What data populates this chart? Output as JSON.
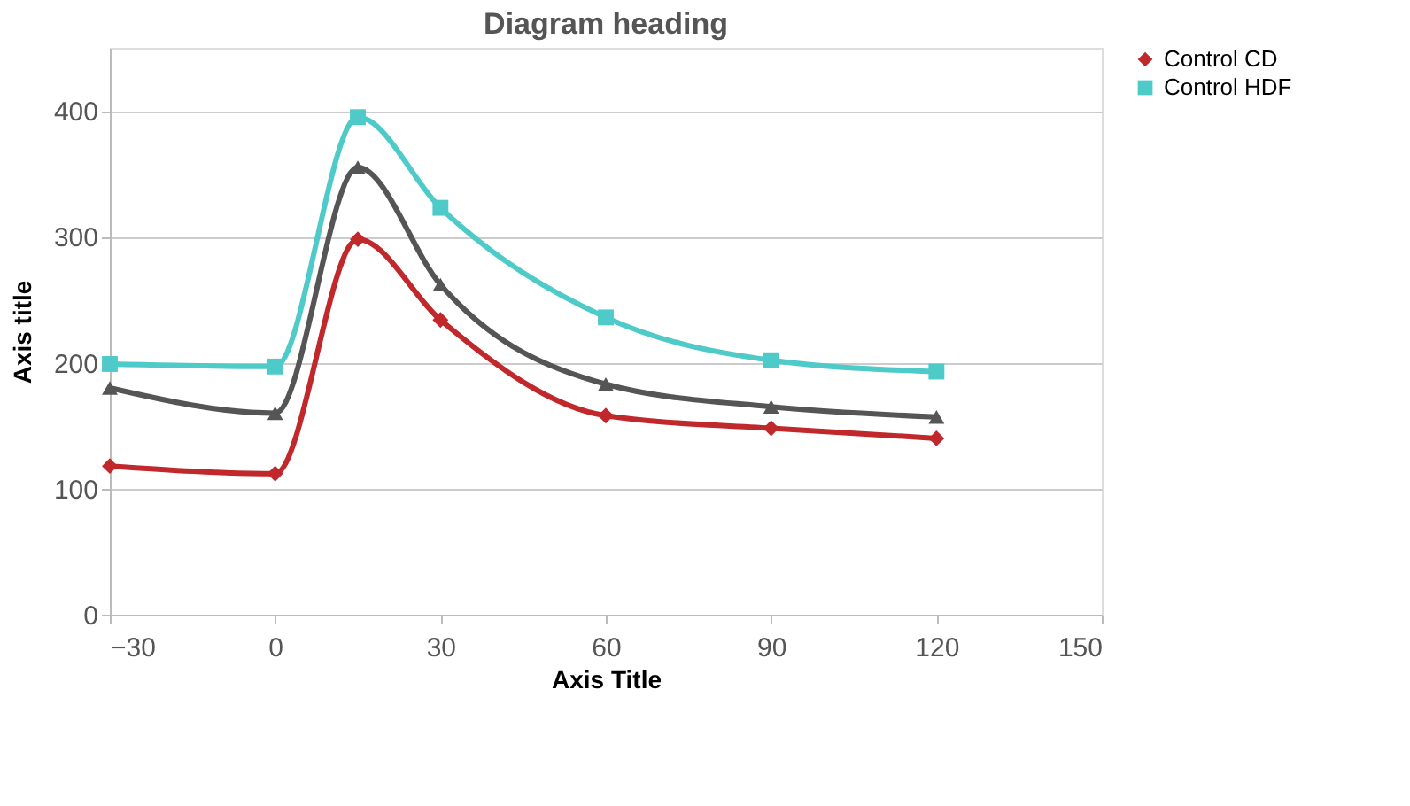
{
  "chart_data": {
    "type": "line",
    "title": "Diagram heading",
    "xlabel": "Axis Title",
    "ylabel": "Axis title",
    "x": [
      -30,
      0,
      15,
      30,
      60,
      90,
      120
    ],
    "series": [
      {
        "name": "Control CD",
        "color": "#c0282b",
        "marker": "diamond",
        "values": [
          118,
          112,
          298,
          234,
          158,
          148,
          140
        ]
      },
      {
        "name": "Control HDF",
        "color": "#4ecbc9",
        "marker": "square",
        "values": [
          199,
          197,
          395,
          323,
          236,
          202,
          193
        ]
      },
      {
        "color": "#555555",
        "marker": "triangle",
        "values": [
          180,
          160,
          355,
          262,
          183,
          165,
          157
        ]
      }
    ],
    "xlim": [
      -30,
      150
    ],
    "xticks": [
      -30,
      0,
      30,
      60,
      90,
      120,
      150
    ],
    "ylim": [
      0,
      450
    ],
    "yticks": [
      0,
      100,
      200,
      300,
      400
    ],
    "grid": "y",
    "legend": "right",
    "line_style": "solid"
  }
}
